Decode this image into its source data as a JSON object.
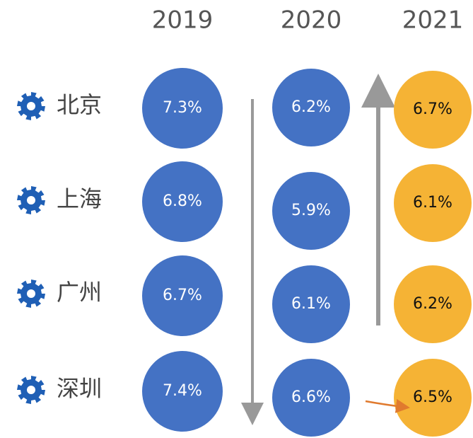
{
  "columns": [
    "2019",
    "2020",
    "2021"
  ],
  "rows": [
    {
      "city": "北京",
      "cells": [
        "7.3%",
        "6.2%",
        "6.7%"
      ]
    },
    {
      "city": "上海",
      "cells": [
        "6.8%",
        "5.9%",
        "6.1%"
      ]
    },
    {
      "city": "广州",
      "cells": [
        "6.7%",
        "6.1%",
        "6.2%"
      ]
    },
    {
      "city": "深圳",
      "cells": [
        "7.4%",
        "6.6%",
        "6.5%"
      ]
    }
  ]
}
